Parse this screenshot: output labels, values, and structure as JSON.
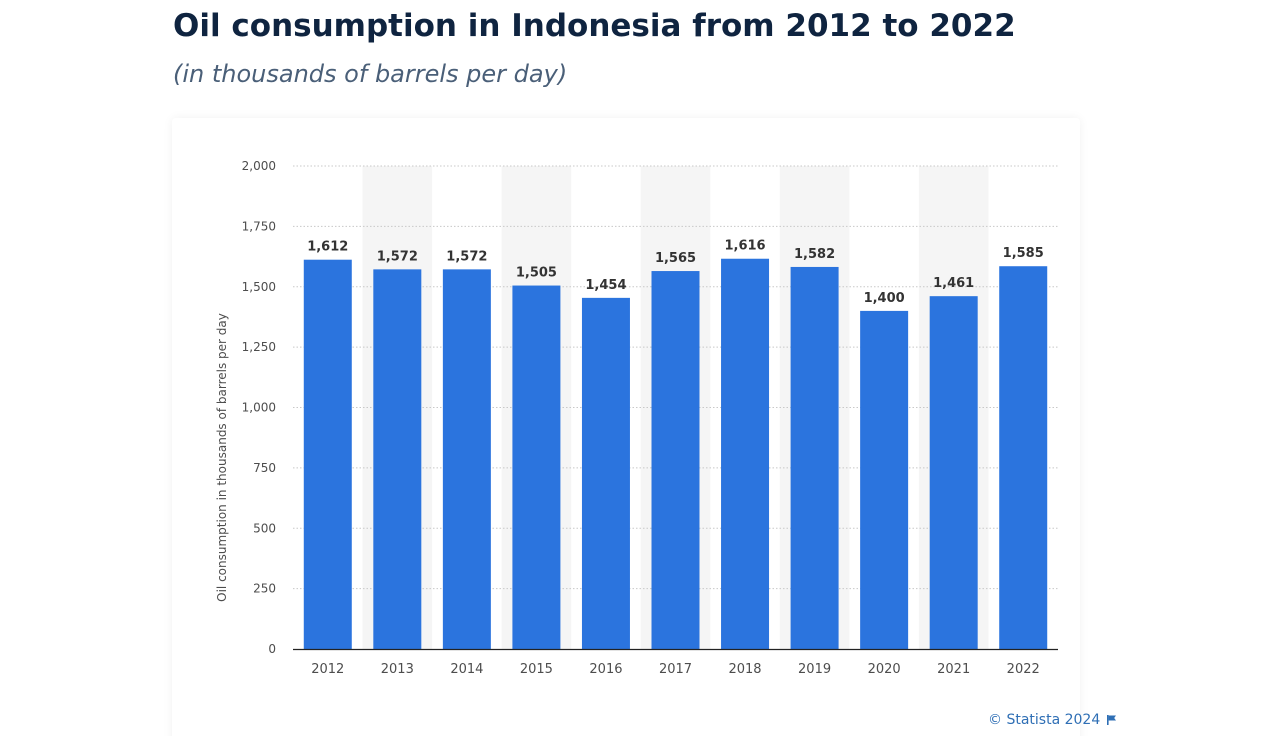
{
  "header": {
    "title": "Oil consumption in Indonesia from 2012 to 2022",
    "subtitle": "(in thousands of barrels per day)"
  },
  "footer": {
    "credit": "© Statista 2024",
    "flag_icon": "flag-icon"
  },
  "colors": {
    "bar": "#2b74de",
    "title": "#0f2440",
    "subtitle": "#4a5f78",
    "credit": "#2f6fb5",
    "axis_text": "#4d4d4d",
    "band": "#f5f5f5"
  },
  "chart_data": {
    "type": "bar",
    "title": "Oil consumption in Indonesia from 2012 to 2022",
    "subtitle": "(in thousands of barrels per day)",
    "xlabel": "",
    "ylabel": "Oil consumption in thousands of barrels per day",
    "categories": [
      "2012",
      "2013",
      "2014",
      "2015",
      "2016",
      "2017",
      "2018",
      "2019",
      "2020",
      "2021",
      "2022"
    ],
    "values": [
      1612,
      1572,
      1572,
      1505,
      1454,
      1565,
      1616,
      1582,
      1400,
      1461,
      1585
    ],
    "value_labels": [
      "1,612",
      "1,572",
      "1,572",
      "1,505",
      "1,454",
      "1,565",
      "1,616",
      "1,582",
      "1,400",
      "1,461",
      "1,585"
    ],
    "ylim": [
      0,
      2000
    ],
    "yticks": [
      0,
      250,
      500,
      750,
      1000,
      1250,
      1500,
      1750,
      2000
    ],
    "ytick_labels": [
      "0",
      "250",
      "500",
      "750",
      "1,000",
      "1,250",
      "1,500",
      "1,750",
      "2,000"
    ],
    "grid": true,
    "legend": "none"
  }
}
